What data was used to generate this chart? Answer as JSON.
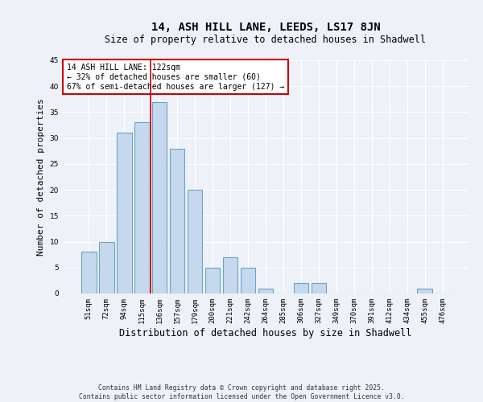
{
  "title": "14, ASH HILL LANE, LEEDS, LS17 8JN",
  "subtitle": "Size of property relative to detached houses in Shadwell",
  "xlabel": "Distribution of detached houses by size in Shadwell",
  "ylabel": "Number of detached properties",
  "categories": [
    "51sqm",
    "72sqm",
    "94sqm",
    "115sqm",
    "136sqm",
    "157sqm",
    "179sqm",
    "200sqm",
    "221sqm",
    "242sqm",
    "264sqm",
    "285sqm",
    "306sqm",
    "327sqm",
    "349sqm",
    "370sqm",
    "391sqm",
    "412sqm",
    "434sqm",
    "455sqm",
    "476sqm"
  ],
  "values": [
    8,
    10,
    31,
    33,
    37,
    28,
    20,
    5,
    7,
    5,
    1,
    0,
    2,
    2,
    0,
    0,
    0,
    0,
    0,
    1,
    0
  ],
  "bar_color": "#c5d8ed",
  "bar_edge_color": "#6aa3c8",
  "ylim": [
    0,
    45
  ],
  "yticks": [
    0,
    5,
    10,
    15,
    20,
    25,
    30,
    35,
    40,
    45
  ],
  "property_line_x": 3.5,
  "property_line_color": "#cc0000",
  "annotation_title": "14 ASH HILL LANE: 122sqm",
  "annotation_line1": "← 32% of detached houses are smaller (60)",
  "annotation_line2": "67% of semi-detached houses are larger (127) →",
  "annotation_box_color": "#ffffff",
  "annotation_box_edge_color": "#cc0000",
  "footer_line1": "Contains HM Land Registry data © Crown copyright and database right 2025.",
  "footer_line2": "Contains public sector information licensed under the Open Government Licence v3.0.",
  "background_color": "#eef2f8",
  "grid_color": "#ffffff",
  "title_fontsize": 10,
  "subtitle_fontsize": 8.5,
  "tick_fontsize": 6.5,
  "ylabel_fontsize": 8,
  "xlabel_fontsize": 8.5,
  "annotation_fontsize": 7,
  "footer_fontsize": 5.8
}
